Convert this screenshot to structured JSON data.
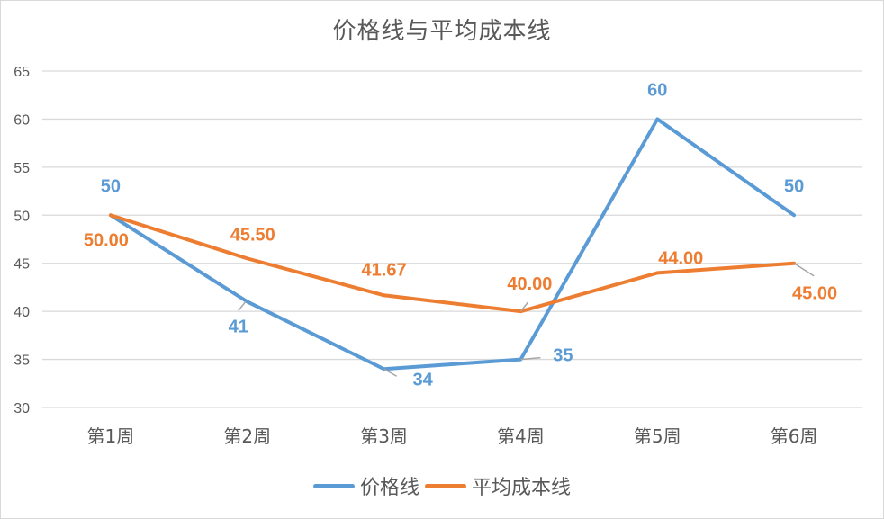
{
  "chart_data": {
    "type": "line",
    "title": "价格线与平均成本线",
    "xlabel": "",
    "ylabel": "",
    "categories": [
      "第1周",
      "第2周",
      "第3周",
      "第4周",
      "第5周",
      "第6周"
    ],
    "series": [
      {
        "name": "价格线",
        "color": "#5b9bd5",
        "values": [
          50,
          41,
          34,
          35,
          60,
          50
        ],
        "labels": [
          "50",
          "41",
          "34",
          "35",
          "60",
          "50"
        ]
      },
      {
        "name": "平均成本线",
        "color": "#ed7d31",
        "values": [
          50.0,
          45.5,
          41.67,
          40.0,
          44.0,
          45.0
        ],
        "labels": [
          "50.00",
          "45.50",
          "41.67",
          "40.00",
          "44.00",
          "45.00"
        ]
      }
    ],
    "ylim": [
      30,
      65
    ],
    "yticks": [
      30,
      35,
      40,
      45,
      50,
      55,
      60,
      65
    ],
    "grid": true,
    "legend_position": "bottom"
  }
}
